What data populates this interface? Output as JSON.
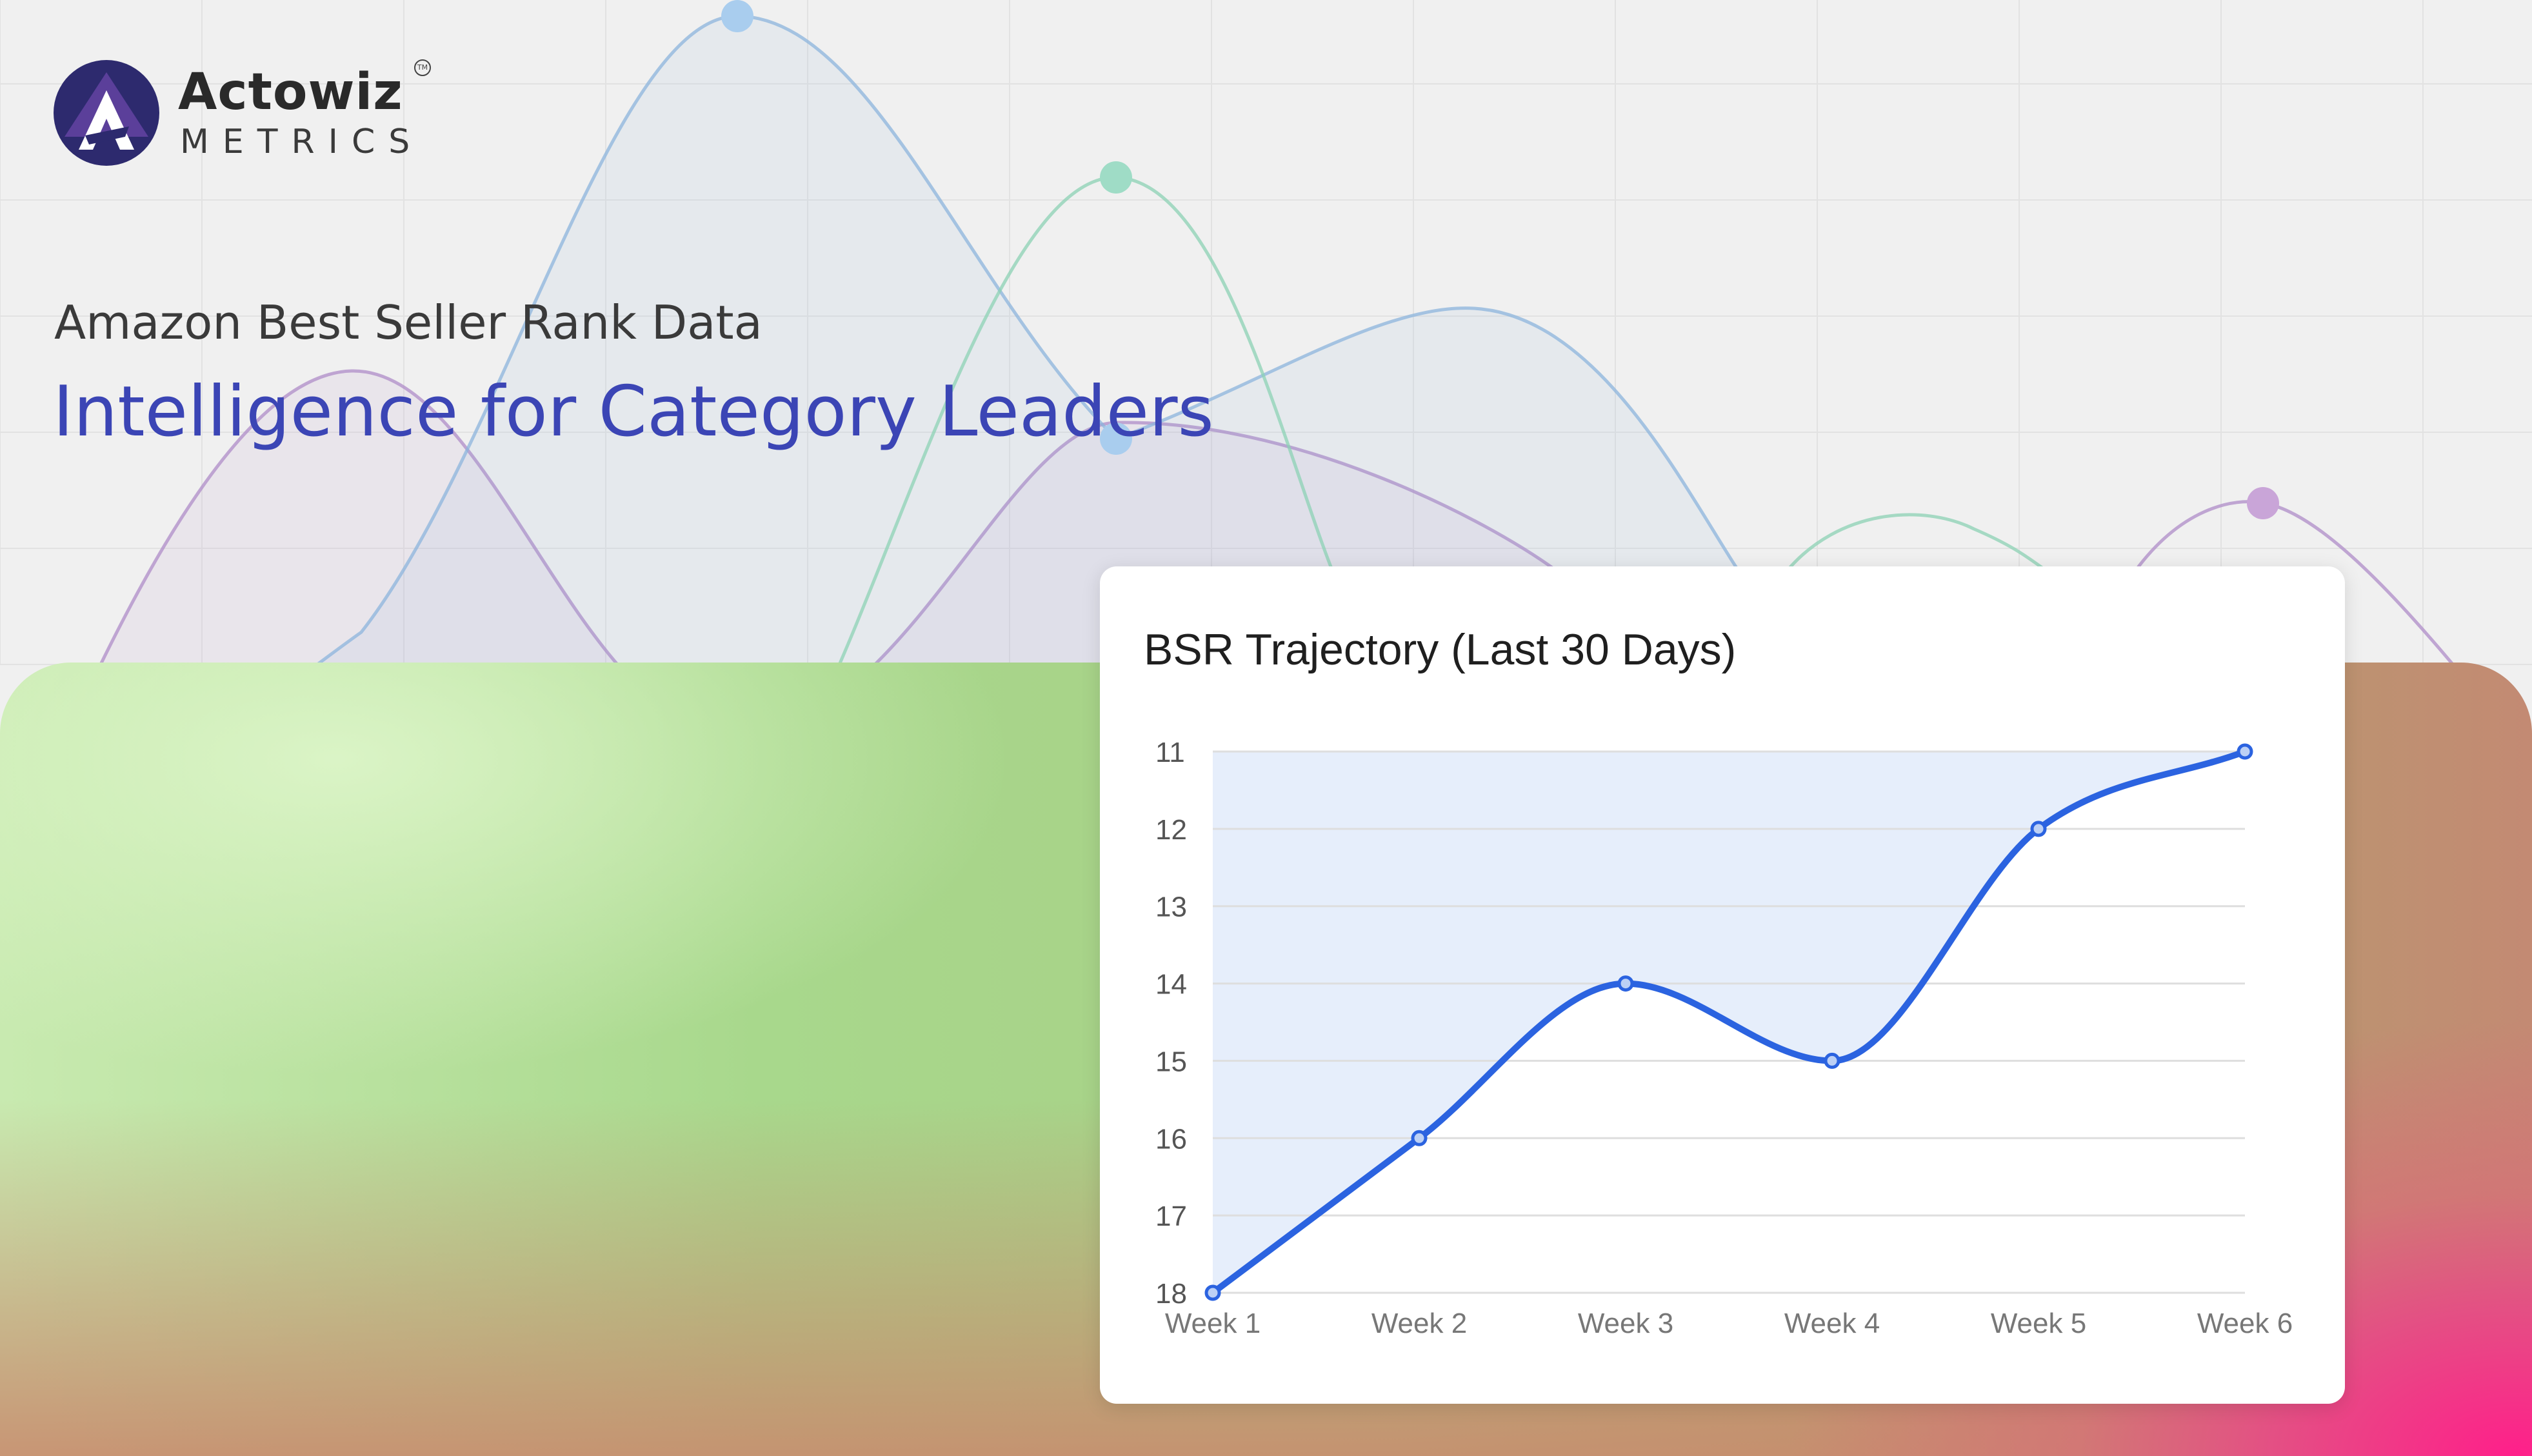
{
  "brand": {
    "name": "Actowiz",
    "sub": "METRICS",
    "trademark": "TM",
    "colors": {
      "logo_dark": "#2d2a6e",
      "logo_mid": "#5b3f9a",
      "logo_accent": "#ffffff"
    }
  },
  "headline": {
    "subtitle": "Amazon Best Seller Rank Data",
    "title": "Intelligence for Category Leaders"
  },
  "colors": {
    "accent": "#3b45b5",
    "line": "#2b63e0",
    "area": "#e6eefb",
    "gradient_green": "#a8d88c",
    "gradient_pink": "#ff1f8a"
  },
  "chart_data": {
    "type": "area",
    "title": "BSR Trajectory (Last 30 Days)",
    "categories": [
      "Week 1",
      "Week 2",
      "Week 3",
      "Week 4",
      "Week 5",
      "Week 6"
    ],
    "series": [
      {
        "values": [
          18,
          16,
          14,
          15,
          12,
          11
        ]
      }
    ],
    "y_ticks": [
      "11",
      "12",
      "13",
      "14",
      "15",
      "16",
      "17",
      "18"
    ],
    "ylim": [
      11,
      18
    ],
    "y_reversed": true,
    "xlabel": "",
    "ylabel": "",
    "grid": true,
    "legend": "none"
  }
}
